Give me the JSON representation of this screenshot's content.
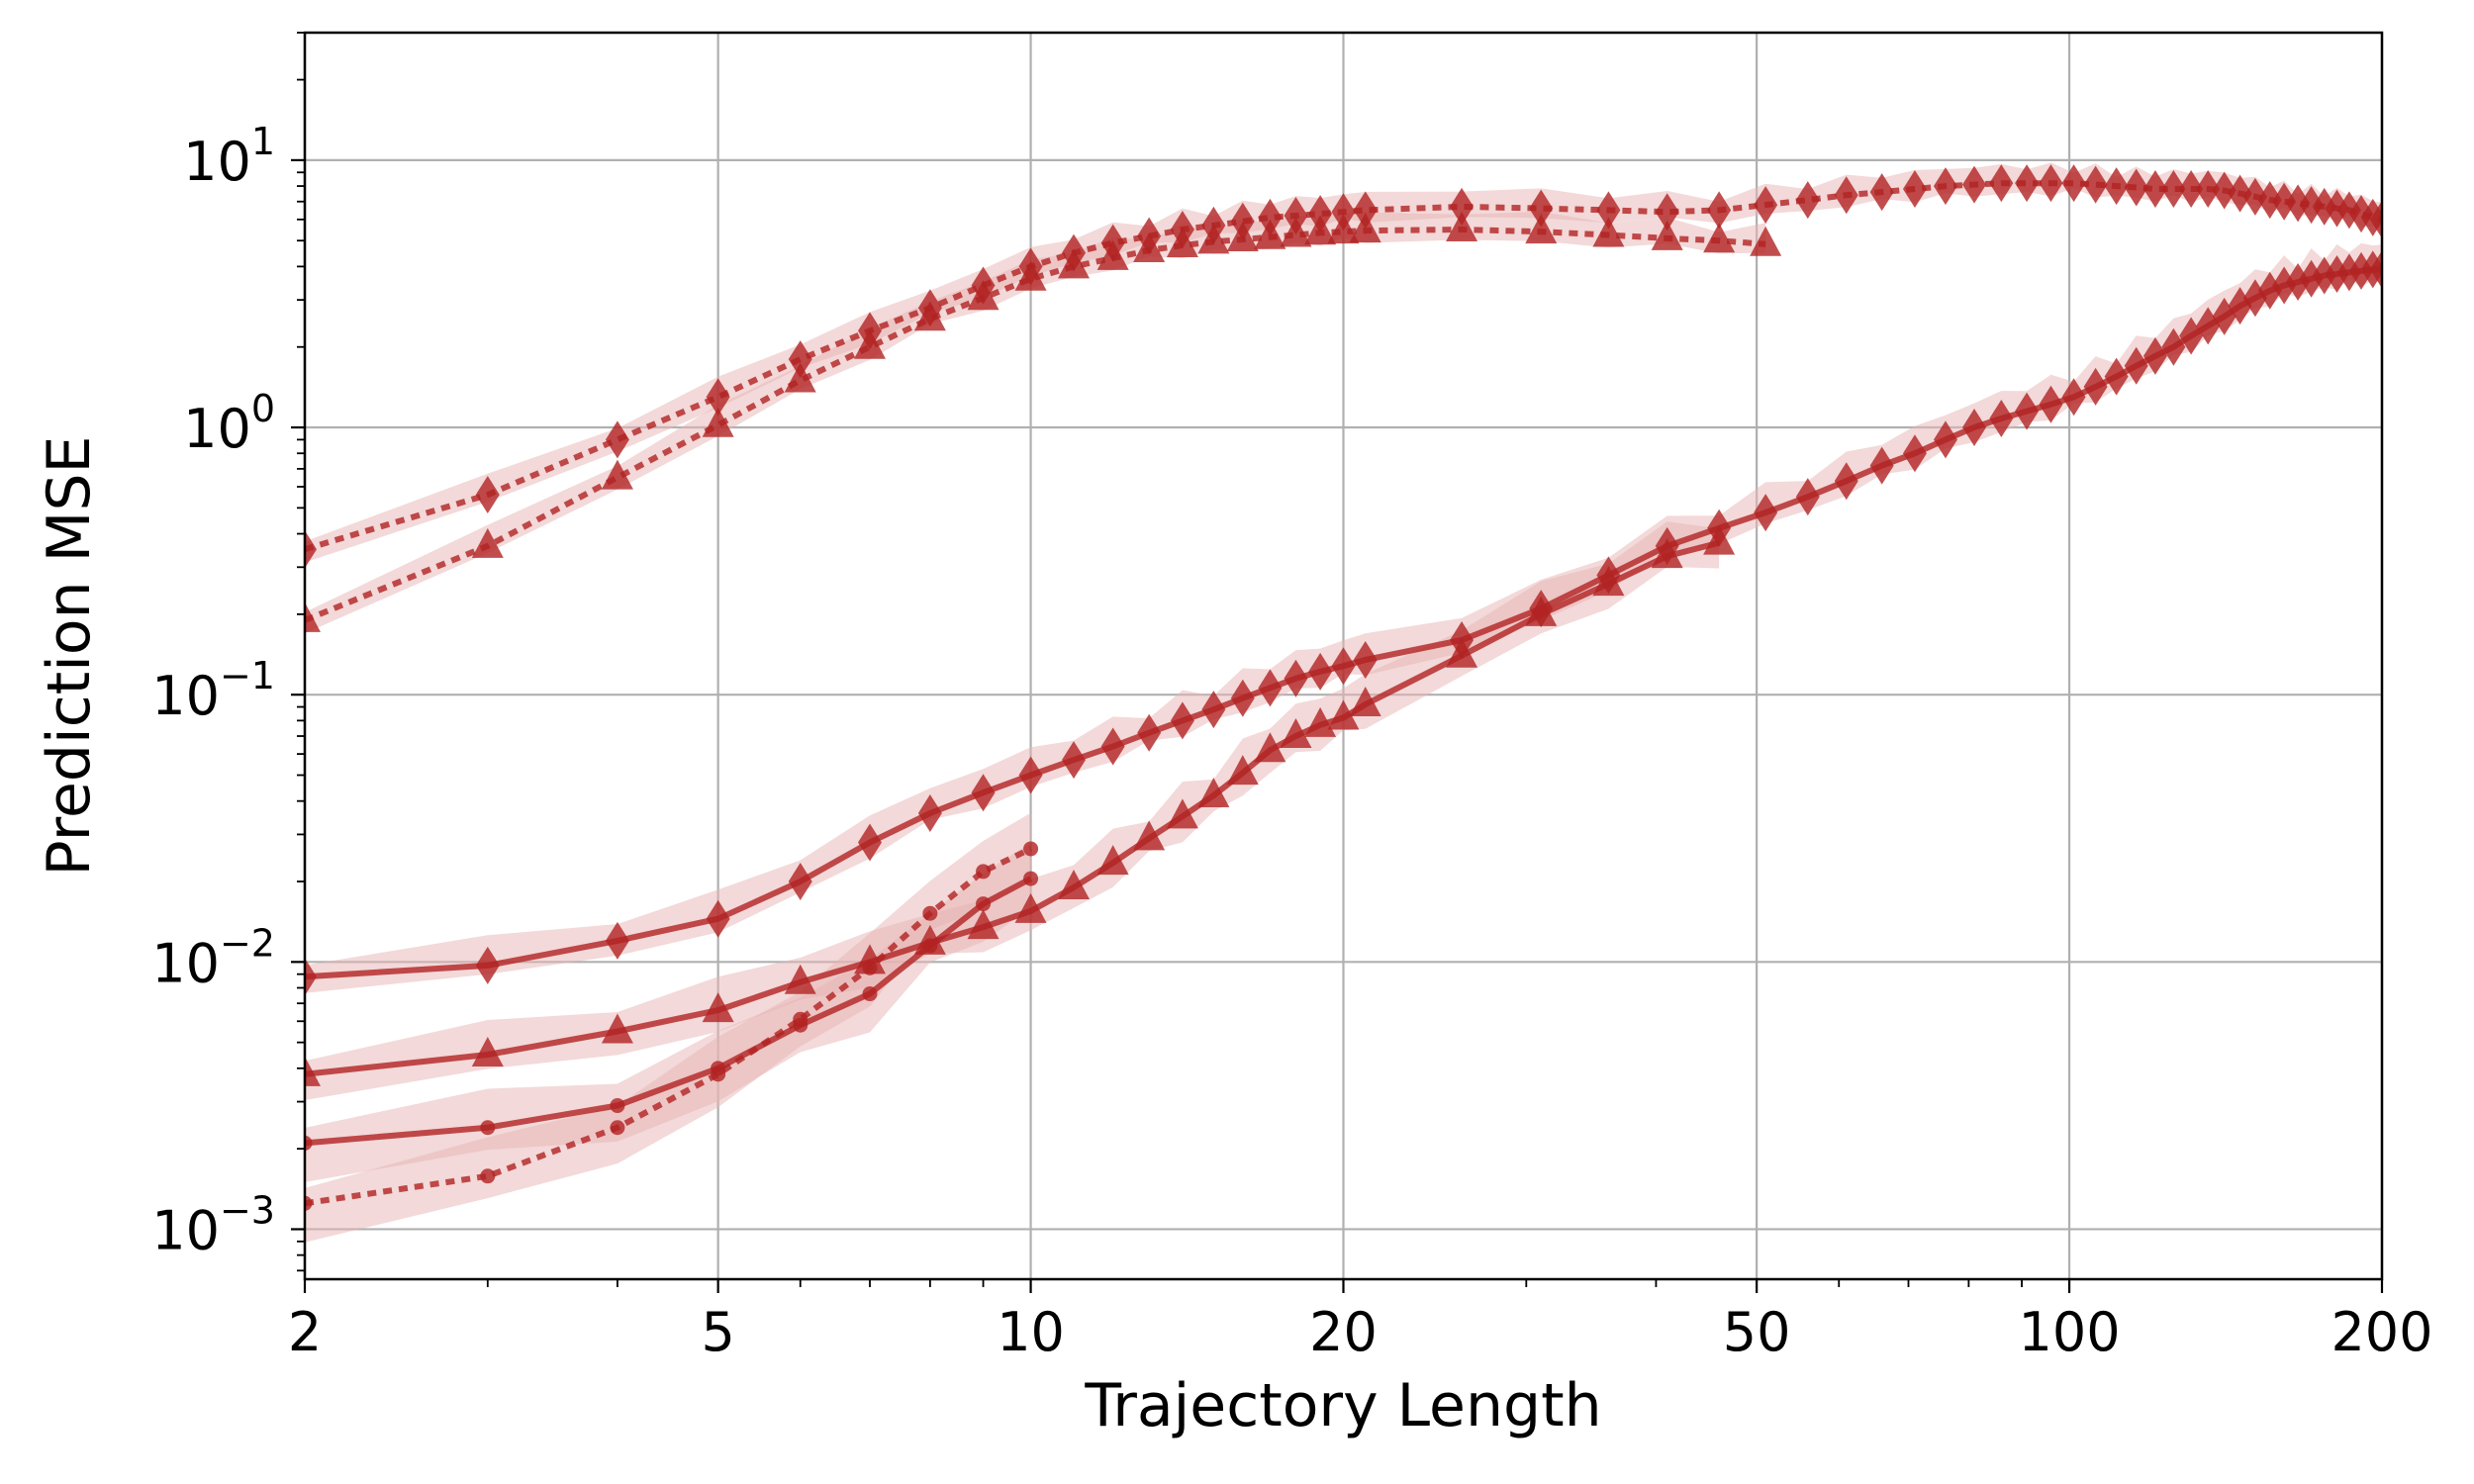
{
  "chart_data": {
    "type": "line",
    "title": "",
    "xlabel": "Trajectory Length",
    "ylabel": "Prediction MSE",
    "xscale": "log",
    "yscale": "log",
    "xlim": [
      2,
      200
    ],
    "ylim": [
      0.00065,
      30
    ],
    "grid": true,
    "xticks": [
      {
        "value": 2,
        "label": "2"
      },
      {
        "value": 5,
        "label": "5"
      },
      {
        "value": 10,
        "label": "10"
      },
      {
        "value": 20,
        "label": "20"
      },
      {
        "value": 50,
        "label": "50"
      },
      {
        "value": 100,
        "label": "100"
      },
      {
        "value": 200,
        "label": "200"
      }
    ],
    "yticks": [
      {
        "value": 0.001,
        "base": "10",
        "exp": "−3"
      },
      {
        "value": 0.01,
        "base": "10",
        "exp": "−2"
      },
      {
        "value": 0.1,
        "base": "10",
        "exp": "−1"
      },
      {
        "value": 1,
        "base": "10",
        "exp": "0"
      },
      {
        "value": 10,
        "base": "10",
        "exp": "1"
      }
    ],
    "colors": {
      "line": "#b22222",
      "band": "#e8b4b4",
      "grid": "#b0b0b0"
    },
    "series": [
      {
        "name": "diamond-dotted-long",
        "marker": "diamond",
        "linestyle": "dotted",
        "x": [
          2,
          3,
          4,
          5,
          6,
          7,
          8,
          9,
          10,
          11,
          12,
          13,
          14,
          15,
          16,
          17,
          18,
          19,
          20,
          21,
          26,
          31,
          36,
          41,
          46,
          51,
          56,
          61,
          66,
          71,
          76,
          81,
          86,
          91,
          96,
          101,
          106,
          111,
          116,
          121,
          126,
          131,
          136,
          141,
          146,
          151,
          156,
          161,
          166,
          171,
          176,
          181,
          186,
          191,
          196,
          200
        ],
        "y": [
          0.35,
          0.56,
          0.9,
          1.3,
          1.8,
          2.3,
          2.8,
          3.4,
          4.0,
          4.5,
          4.9,
          5.2,
          5.5,
          5.7,
          5.9,
          6.1,
          6.2,
          6.3,
          6.4,
          6.5,
          6.7,
          6.6,
          6.5,
          6.4,
          6.5,
          6.8,
          7.1,
          7.4,
          7.6,
          7.8,
          8.0,
          8.1,
          8.2,
          8.2,
          8.2,
          8.2,
          8.1,
          8.0,
          7.9,
          7.8,
          7.8,
          7.8,
          7.8,
          7.7,
          7.5,
          7.3,
          7.1,
          7.0,
          6.9,
          6.8,
          6.7,
          6.6,
          6.5,
          6.3,
          6.1,
          6.0
        ],
        "band": [
          0.2,
          0.12
        ]
      },
      {
        "name": "triangle-dotted-long",
        "marker": "triangle",
        "linestyle": "dotted",
        "x": [
          2,
          3,
          4,
          5,
          6,
          7,
          8,
          9,
          10,
          11,
          12,
          13,
          14,
          15,
          16,
          17,
          18,
          19,
          20,
          21,
          26,
          31,
          36,
          41,
          46,
          51
        ],
        "y": [
          0.19,
          0.36,
          0.65,
          1.02,
          1.5,
          2.0,
          2.55,
          3.05,
          3.6,
          4.0,
          4.3,
          4.6,
          4.8,
          4.95,
          5.05,
          5.15,
          5.25,
          5.35,
          5.4,
          5.45,
          5.5,
          5.4,
          5.25,
          5.1,
          5.0,
          4.85
        ],
        "band": [
          0.2,
          0.12
        ]
      },
      {
        "name": "diamond-solid",
        "marker": "diamond",
        "linestyle": "solid",
        "x": [
          2,
          3,
          4,
          5,
          6,
          7,
          8,
          9,
          10,
          11,
          12,
          13,
          14,
          15,
          16,
          17,
          18,
          19,
          20,
          21,
          26,
          31,
          36,
          41,
          46,
          51,
          56,
          61,
          66,
          71,
          76,
          81,
          86,
          91,
          96,
          101,
          106,
          111,
          116,
          121,
          126,
          131,
          136,
          141,
          146,
          151,
          156,
          161,
          166,
          171,
          176,
          181,
          186,
          191,
          196,
          200
        ],
        "y": [
          0.0088,
          0.0097,
          0.012,
          0.0145,
          0.02,
          0.028,
          0.036,
          0.043,
          0.05,
          0.057,
          0.064,
          0.072,
          0.08,
          0.088,
          0.097,
          0.106,
          0.115,
          0.122,
          0.128,
          0.135,
          0.16,
          0.21,
          0.28,
          0.36,
          0.42,
          0.48,
          0.55,
          0.63,
          0.72,
          0.8,
          0.9,
          1.0,
          1.08,
          1.15,
          1.22,
          1.3,
          1.42,
          1.55,
          1.7,
          1.85,
          2.0,
          2.2,
          2.4,
          2.6,
          2.85,
          3.05,
          3.25,
          3.4,
          3.5,
          3.6,
          3.7,
          3.75,
          3.8,
          3.85,
          3.9,
          3.9
        ],
        "band": [
          0.3,
          0.15
        ]
      },
      {
        "name": "triangle-solid",
        "marker": "triangle",
        "linestyle": "solid",
        "x": [
          2,
          3,
          4,
          5,
          6,
          7,
          8,
          9,
          10,
          11,
          12,
          13,
          14,
          15,
          16,
          17,
          18,
          19,
          20,
          21,
          26,
          31,
          36,
          41,
          46
        ],
        "y": [
          0.0038,
          0.0045,
          0.0055,
          0.0066,
          0.0084,
          0.01,
          0.0118,
          0.0135,
          0.0155,
          0.019,
          0.0235,
          0.029,
          0.035,
          0.042,
          0.051,
          0.062,
          0.07,
          0.077,
          0.082,
          0.092,
          0.14,
          0.2,
          0.26,
          0.33,
          0.37
        ],
        "band": [
          0.35,
          0.25
        ]
      },
      {
        "name": "dot-solid",
        "marker": "circle",
        "linestyle": "solid",
        "x": [
          2,
          3,
          4,
          5,
          6,
          7,
          8,
          9,
          10
        ],
        "y": [
          0.0021,
          0.0024,
          0.0029,
          0.004,
          0.0058,
          0.0076,
          0.0115,
          0.0165,
          0.0205
        ],
        "band": [
          0.4,
          0.4
        ]
      },
      {
        "name": "dot-dotted",
        "marker": "circle",
        "linestyle": "dotted",
        "x": [
          2,
          3,
          4,
          5,
          6,
          7,
          8,
          9,
          10
        ],
        "y": [
          0.00125,
          0.00158,
          0.0024,
          0.0038,
          0.0061,
          0.0095,
          0.0152,
          0.0218,
          0.0265
        ],
        "band": [
          0.4,
          0.4
        ]
      }
    ]
  }
}
